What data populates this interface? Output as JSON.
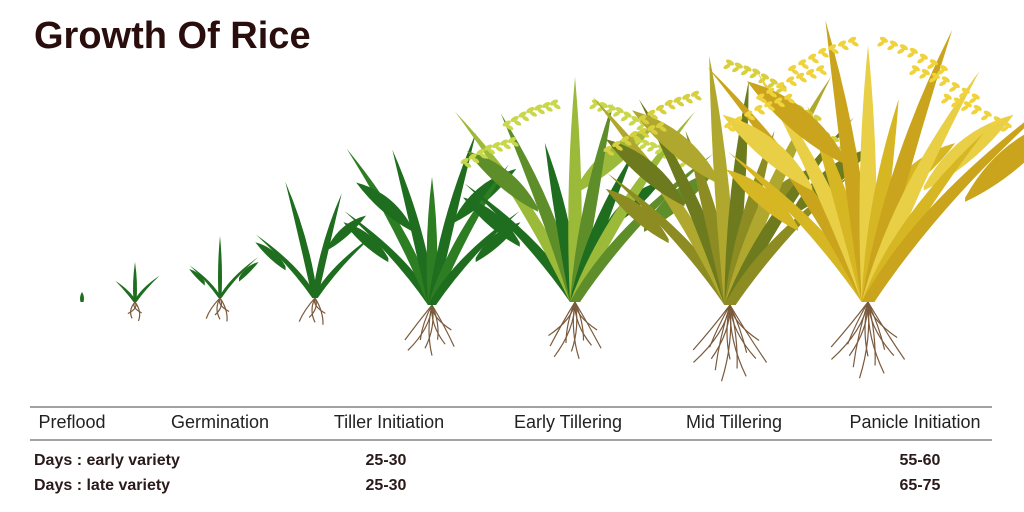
{
  "title": "Growth Of Rice",
  "stages": [
    "Preflood",
    "Germination",
    "Tiller Initiation",
    "Early Tillering",
    "Mid Tillering",
    "Panicle Initiation"
  ],
  "days": [
    {
      "label": "Days : early variety",
      "cells": [
        "25-30",
        "55-60"
      ]
    },
    {
      "label": "Days : late variety",
      "cells": [
        "25-30",
        "65-75"
      ]
    }
  ]
}
